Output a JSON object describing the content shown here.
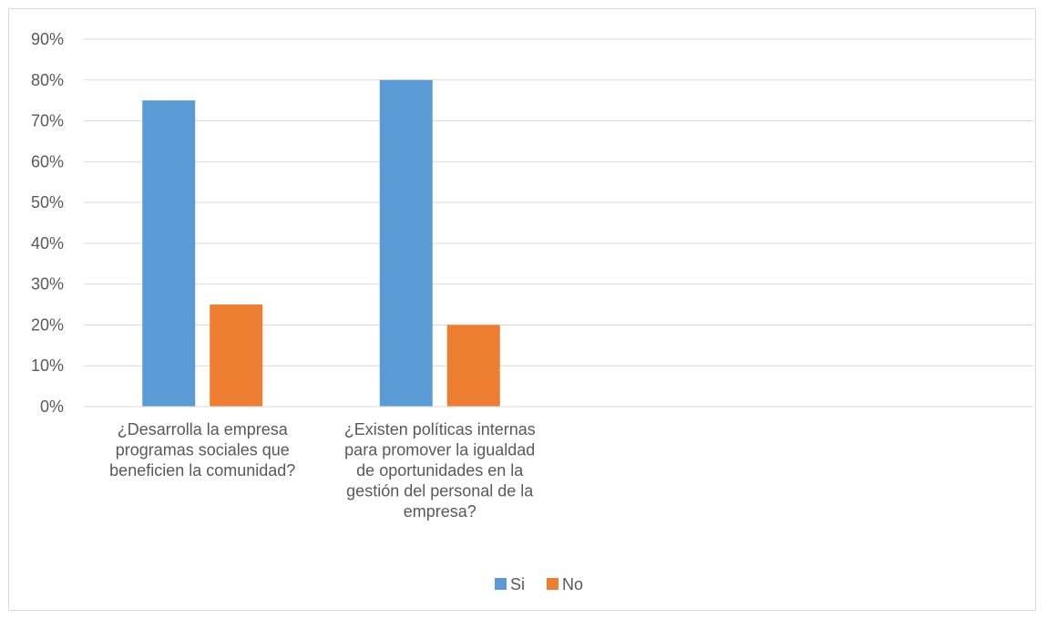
{
  "chart_data": {
    "type": "bar",
    "title": "",
    "xlabel": "",
    "ylabel": "",
    "ylim": [
      0,
      0.9
    ],
    "y_tick_step": 0.1,
    "y_tick_labels": [
      "0%",
      "10%",
      "20%",
      "30%",
      "40%",
      "50%",
      "60%",
      "70%",
      "80%",
      "90%"
    ],
    "grid": true,
    "legend_position": "bottom",
    "categories": [
      [
        "¿Desarrolla la empresa",
        "programas sociales que",
        "beneficien la comunidad?"
      ],
      [
        "¿Existen políticas internas",
        "para promover la igualdad",
        "de oportunidades en la",
        "gestión del personal de la",
        "empresa?"
      ],
      [],
      []
    ],
    "series": [
      {
        "name": "Si",
        "color": "#5b9bd5",
        "values": [
          0.75,
          0.8,
          null,
          null
        ]
      },
      {
        "name": "No",
        "color": "#ed7d31",
        "values": [
          0.25,
          0.2,
          null,
          null
        ]
      }
    ]
  }
}
